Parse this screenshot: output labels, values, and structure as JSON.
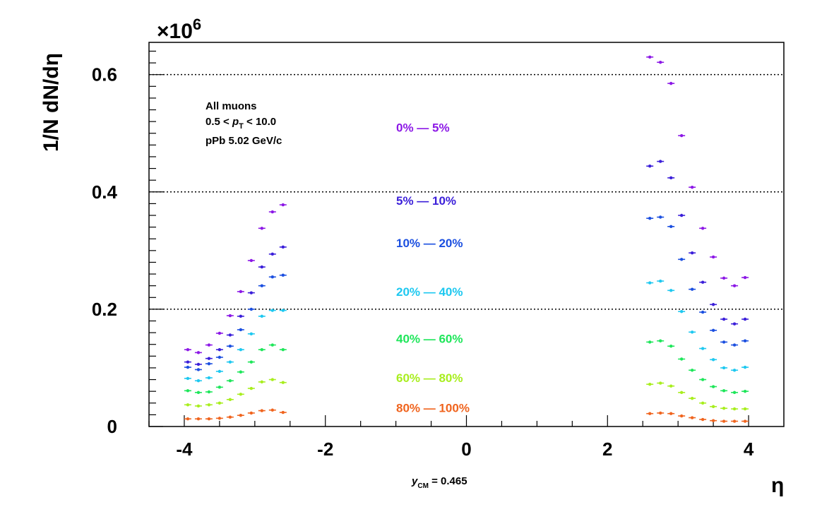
{
  "chart_data": {
    "type": "scatter",
    "xlabel": "η",
    "ylabel": "1/N dN/dη",
    "y_multiplier": "×10",
    "y_multiplier_exp": "6",
    "xlim": [
      -4.5,
      4.5
    ],
    "ylim": [
      0,
      0.655
    ],
    "x_ticks": [
      "-4",
      "-2",
      "0",
      "2",
      "4"
    ],
    "y_ticks": [
      "0",
      "0.2",
      "0.4",
      "0.6"
    ],
    "grid": "dotted horizontal at 0.2, 0.4, 0.6",
    "annotations": {
      "line1": "All muons",
      "line2_a": "0.5 < ",
      "line2_p": "p",
      "line2_sub": "T",
      "line2_b": " < 10.0",
      "line3": "pPb 5.02 GeV/c"
    },
    "bottom_note": {
      "y": "y",
      "sub": "CM",
      "rest": " = 0.465"
    },
    "x_bin_half_width": 0.05,
    "series": [
      {
        "name": "0% — 5%",
        "color": "#8c18e6",
        "x": [
          -3.95,
          -3.8,
          -3.65,
          -3.5,
          -3.35,
          -3.2,
          -3.05,
          -2.9,
          -2.75,
          -2.6,
          2.6,
          2.75,
          2.9,
          3.05,
          3.2,
          3.35,
          3.5,
          3.65,
          3.8,
          3.95
        ],
        "y": [
          0.131,
          0.126,
          0.139,
          0.159,
          0.189,
          0.23,
          0.283,
          0.338,
          0.366,
          0.378,
          0.63,
          0.621,
          0.585,
          0.496,
          0.408,
          0.338,
          0.289,
          0.253,
          0.24,
          0.254
        ]
      },
      {
        "name": "5% — 10%",
        "color": "#3b1fd9",
        "x": [
          -3.95,
          -3.8,
          -3.65,
          -3.5,
          -3.35,
          -3.2,
          -3.05,
          -2.9,
          -2.75,
          -2.6,
          2.6,
          2.75,
          2.9,
          3.05,
          3.2,
          3.35,
          3.5,
          3.65,
          3.8,
          3.95
        ],
        "y": [
          0.11,
          0.106,
          0.116,
          0.131,
          0.156,
          0.188,
          0.228,
          0.272,
          0.294,
          0.306,
          0.444,
          0.452,
          0.424,
          0.36,
          0.296,
          0.246,
          0.208,
          0.183,
          0.175,
          0.183
        ]
      },
      {
        "name": "10% — 20%",
        "color": "#1b4fe0",
        "x": [
          -3.95,
          -3.8,
          -3.65,
          -3.5,
          -3.35,
          -3.2,
          -3.05,
          -2.9,
          -2.75,
          -2.6,
          2.6,
          2.75,
          2.9,
          3.05,
          3.2,
          3.35,
          3.5,
          3.65,
          3.8,
          3.95
        ],
        "y": [
          0.101,
          0.097,
          0.107,
          0.118,
          0.137,
          0.165,
          0.2,
          0.24,
          0.255,
          0.258,
          0.355,
          0.357,
          0.341,
          0.285,
          0.234,
          0.195,
          0.164,
          0.144,
          0.139,
          0.146
        ]
      },
      {
        "name": "20% — 40%",
        "color": "#1ec8f0",
        "x": [
          -3.95,
          -3.8,
          -3.65,
          -3.5,
          -3.35,
          -3.2,
          -3.05,
          -2.9,
          -2.75,
          -2.6,
          2.6,
          2.75,
          2.9,
          3.05,
          3.2,
          3.35,
          3.5,
          3.65,
          3.8,
          3.95
        ],
        "y": [
          0.082,
          0.078,
          0.083,
          0.094,
          0.11,
          0.131,
          0.158,
          0.188,
          0.198,
          0.198,
          0.245,
          0.248,
          0.232,
          0.196,
          0.161,
          0.133,
          0.114,
          0.1,
          0.096,
          0.101
        ]
      },
      {
        "name": "40% — 60%",
        "color": "#1ee65a",
        "x": [
          -3.95,
          -3.8,
          -3.65,
          -3.5,
          -3.35,
          -3.2,
          -3.05,
          -2.9,
          -2.75,
          -2.6,
          2.6,
          2.75,
          2.9,
          3.05,
          3.2,
          3.35,
          3.5,
          3.65,
          3.8,
          3.95
        ],
        "y": [
          0.061,
          0.058,
          0.059,
          0.067,
          0.078,
          0.093,
          0.11,
          0.131,
          0.139,
          0.131,
          0.144,
          0.146,
          0.137,
          0.115,
          0.096,
          0.08,
          0.068,
          0.061,
          0.058,
          0.06
        ]
      },
      {
        "name": "60% — 80%",
        "color": "#a8ee1e",
        "x": [
          -3.95,
          -3.8,
          -3.65,
          -3.5,
          -3.35,
          -3.2,
          -3.05,
          -2.9,
          -2.75,
          -2.6,
          2.6,
          2.75,
          2.9,
          3.05,
          3.2,
          3.35,
          3.5,
          3.65,
          3.8,
          3.95
        ],
        "y": [
          0.037,
          0.035,
          0.037,
          0.04,
          0.046,
          0.055,
          0.065,
          0.076,
          0.08,
          0.075,
          0.072,
          0.074,
          0.069,
          0.058,
          0.048,
          0.04,
          0.034,
          0.031,
          0.03,
          0.03
        ]
      },
      {
        "name": "80% — 100%",
        "color": "#f0641e",
        "x": [
          -3.95,
          -3.8,
          -3.65,
          -3.5,
          -3.35,
          -3.2,
          -3.05,
          -2.9,
          -2.75,
          -2.6,
          2.6,
          2.75,
          2.9,
          3.05,
          3.2,
          3.35,
          3.5,
          3.65,
          3.8,
          3.95
        ],
        "y": [
          0.013,
          0.013,
          0.013,
          0.014,
          0.016,
          0.019,
          0.023,
          0.027,
          0.028,
          0.024,
          0.022,
          0.023,
          0.022,
          0.018,
          0.015,
          0.012,
          0.01,
          0.009,
          0.009,
          0.009
        ]
      }
    ]
  }
}
